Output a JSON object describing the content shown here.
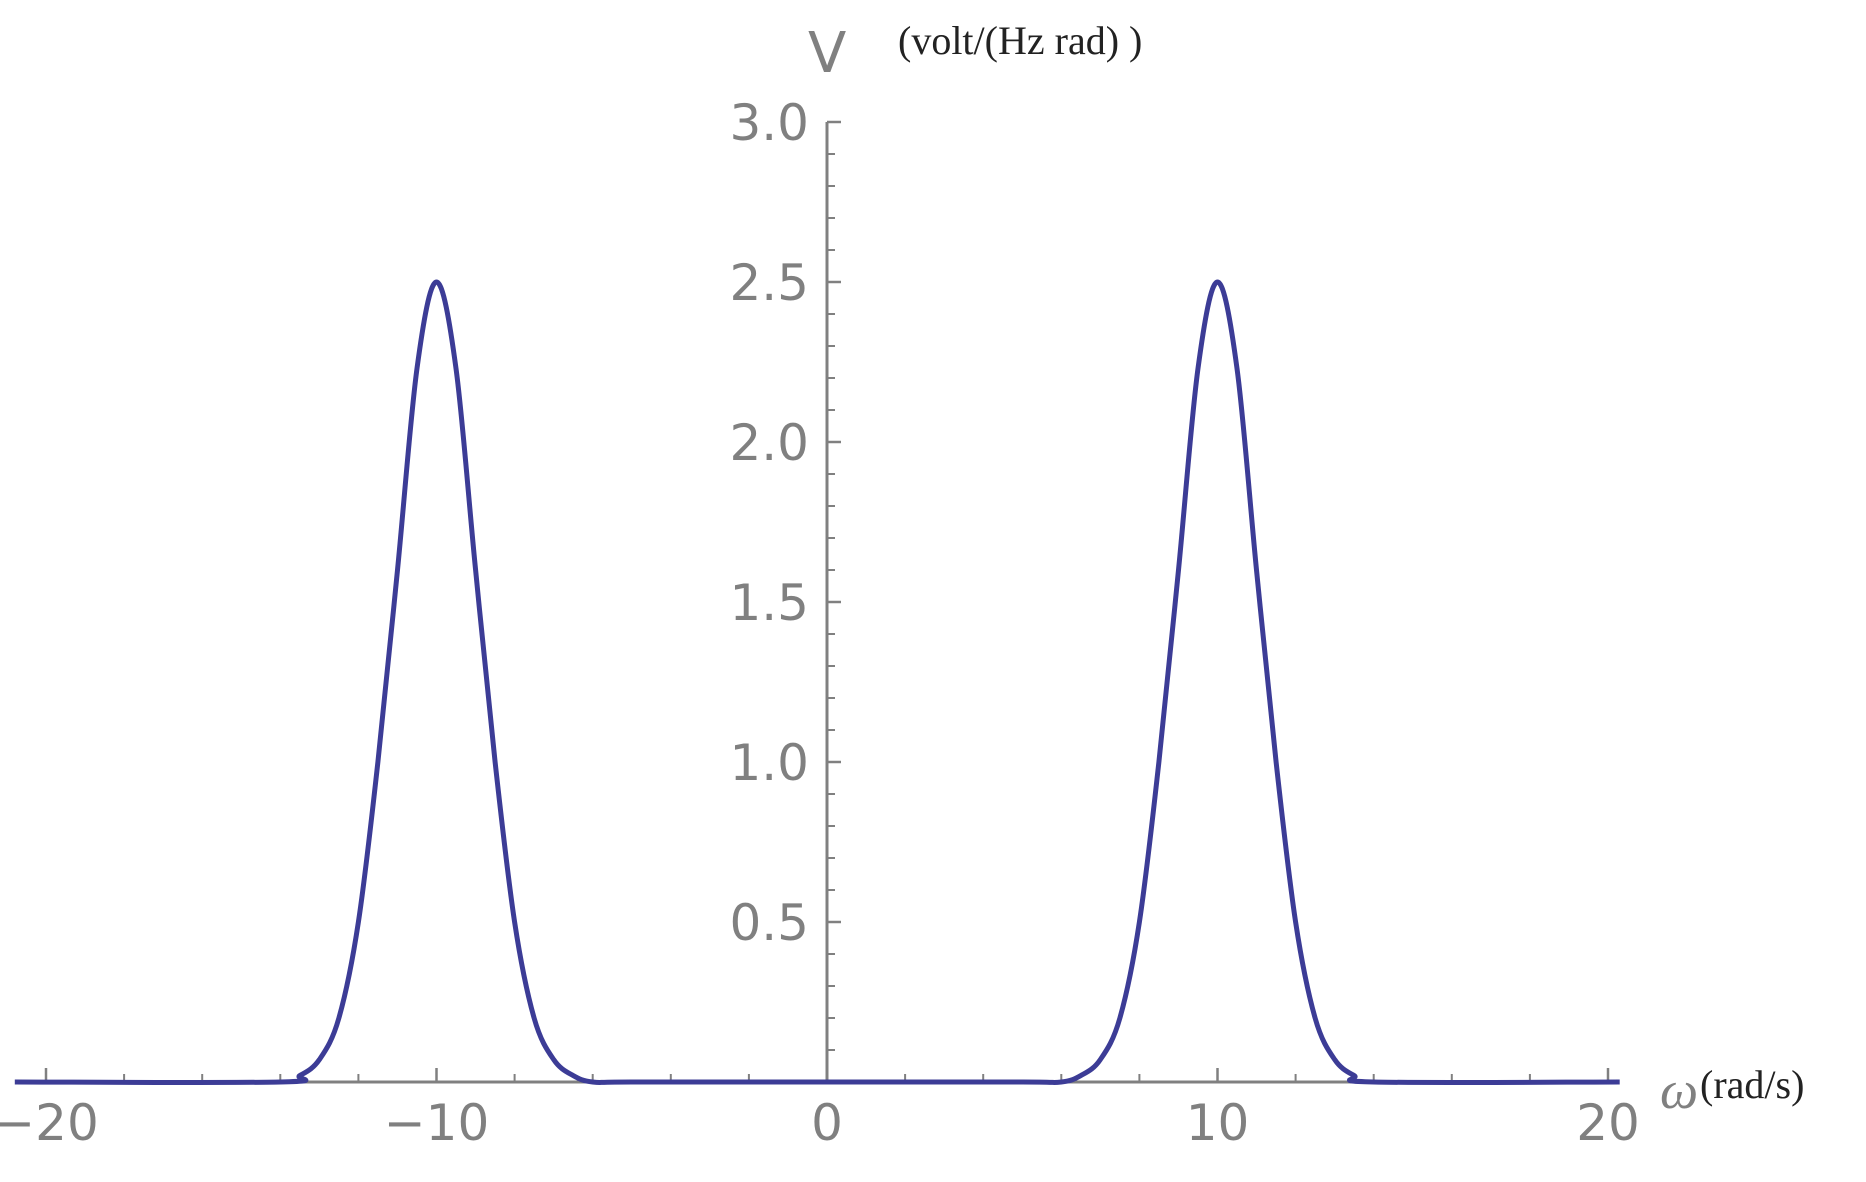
{
  "chart_data": {
    "type": "line",
    "title": "",
    "x_axis": {
      "symbol": "ω",
      "unit": "(rad/s)",
      "range": [
        -20.8,
        20.3
      ],
      "major_ticks": [
        -20,
        -10,
        0,
        10,
        20
      ],
      "tick_labels": [
        "−20",
        "−10",
        "0",
        "10",
        "20"
      ],
      "minor_step": 2
    },
    "y_axis": {
      "symbol": "V",
      "unit": "(volt/(Hz rad) )",
      "range": [
        0,
        3.0
      ],
      "major_ticks": [
        0.5,
        1.0,
        1.5,
        2.0,
        2.5,
        3.0
      ],
      "tick_labels": [
        "0.5",
        "1.0",
        "1.5",
        "2.0",
        "2.5",
        "3.0"
      ],
      "minor_step": 0.1
    },
    "grid": false,
    "series": [
      {
        "color": "#3c3c96",
        "x": [
          -14,
          -13.5,
          -13,
          -12.5,
          -12,
          -11.5,
          -11,
          -10.5,
          -10,
          -9.5,
          -9,
          -8.5,
          -8,
          -7.5,
          -7,
          -6.5,
          -6,
          -5,
          0,
          5,
          6,
          6.5,
          7,
          7.5,
          8,
          8.5,
          9,
          9.5,
          10,
          10.5,
          11,
          11.5,
          12,
          12.5,
          13,
          13.5,
          14
        ],
        "y": [
          0.0,
          0.02,
          0.07,
          0.2,
          0.5,
          1.0,
          1.6,
          2.23,
          2.5,
          2.23,
          1.6,
          1.0,
          0.5,
          0.2,
          0.07,
          0.02,
          0.0,
          0.0,
          0.0,
          0.0,
          0.0,
          0.02,
          0.07,
          0.2,
          0.5,
          1.0,
          1.6,
          2.23,
          2.5,
          2.23,
          1.6,
          1.0,
          0.5,
          0.2,
          0.07,
          0.02,
          0.0
        ]
      }
    ]
  }
}
